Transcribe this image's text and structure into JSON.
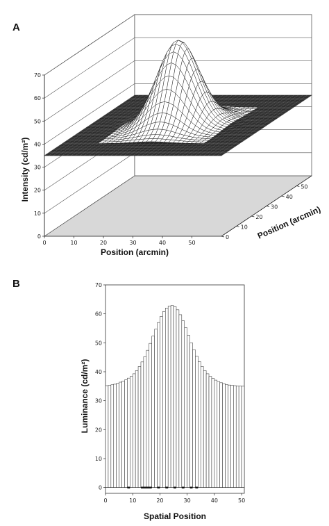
{
  "chart_data": [
    {
      "type": "surface",
      "panel_label": "A",
      "z_label": "Intensity (cd/m²)",
      "x_label": "Position (arcmin)",
      "y_label": "Position (arcmin)",
      "z_ticks": [
        "0",
        "10",
        "20",
        "30",
        "40",
        "50",
        "60",
        "70"
      ],
      "x_ticks": [
        "0",
        "10",
        "20",
        "30",
        "40",
        "50"
      ],
      "y_ticks": [
        "0",
        "10",
        "20",
        "30",
        "40",
        "50"
      ],
      "zlim": [
        0,
        70
      ],
      "xlim": [
        0,
        60
      ],
      "ylim": [
        0,
        60
      ],
      "plateau_level": 35,
      "peak_value": 72,
      "peak_position": [
        30,
        30
      ],
      "grid": true
    },
    {
      "type": "bar",
      "panel_label": "B",
      "xlabel": "Spatial Position",
      "ylabel": "Luminance (cd/m²)",
      "x_ticks": [
        "0",
        "10",
        "20",
        "30",
        "40",
        "50"
      ],
      "y_ticks": [
        "0",
        "10",
        "20",
        "30",
        "40",
        "50",
        "60",
        "70"
      ],
      "xlim": [
        0,
        51
      ],
      "ylim": [
        -2,
        70
      ],
      "x": [
        0,
        1,
        2,
        3,
        4,
        5,
        6,
        7,
        8,
        9,
        10,
        11,
        12,
        13,
        14,
        15,
        16,
        17,
        18,
        19,
        20,
        21,
        22,
        23,
        24,
        25,
        26,
        27,
        28,
        29,
        30,
        31,
        32,
        33,
        34,
        35,
        36,
        37,
        38,
        39,
        40,
        41,
        42,
        43,
        44,
        45,
        46,
        47,
        48,
        49,
        50
      ],
      "values": [
        35.2,
        35.3,
        35.5,
        35.7,
        36.0,
        36.4,
        36.8,
        37.2,
        37.8,
        38.4,
        39.3,
        40.4,
        41.8,
        43.4,
        45.2,
        47.4,
        49.8,
        52.3,
        54.7,
        57.0,
        59.1,
        60.8,
        62.0,
        62.7,
        62.9,
        62.5,
        61.4,
        59.7,
        57.6,
        55.2,
        52.6,
        50.0,
        47.6,
        45.4,
        43.5,
        41.8,
        40.4,
        39.3,
        38.4,
        37.7,
        37.1,
        36.6,
        36.2,
        35.9,
        35.6,
        35.4,
        35.3,
        35.2,
        35.1,
        35.1,
        35.0
      ],
      "grid": false
    }
  ]
}
